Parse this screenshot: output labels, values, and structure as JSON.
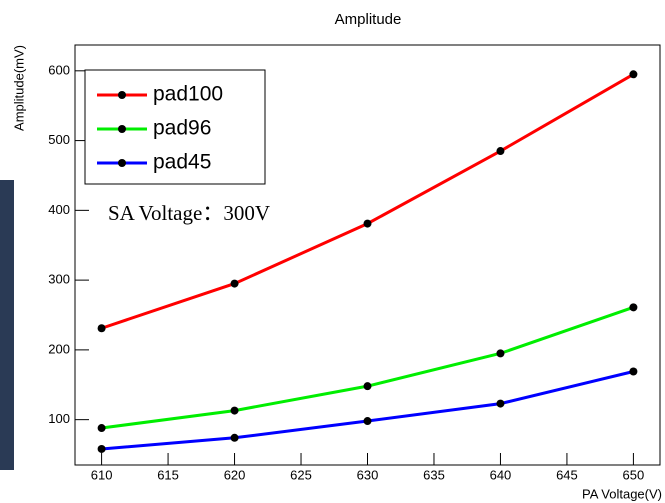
{
  "chart_data": {
    "type": "line",
    "title": "Amplitude",
    "x_label": "PA Voltage(V)",
    "y_label": "Amplitude(mV)",
    "annotation": "SA Voltage：300V",
    "x": [
      610,
      620,
      630,
      640,
      650
    ],
    "series": [
      {
        "name": "pad100",
        "color": "#ff0000",
        "values": [
          231,
          295,
          381,
          485,
          595
        ]
      },
      {
        "name": "pad96",
        "color": "#00ee00",
        "values": [
          88,
          113,
          148,
          195,
          261
        ]
      },
      {
        "name": "pad45",
        "color": "#0000ff",
        "values": [
          58,
          74,
          98,
          123,
          169
        ]
      }
    ],
    "xlim": [
      608,
      652
    ],
    "xticks": [
      610,
      615,
      620,
      625,
      630,
      635,
      640,
      645,
      650
    ],
    "ylim": [
      35,
      637
    ],
    "yticks": [
      100,
      200,
      300,
      400,
      500,
      600
    ],
    "grid": false,
    "legend": "top-left"
  }
}
